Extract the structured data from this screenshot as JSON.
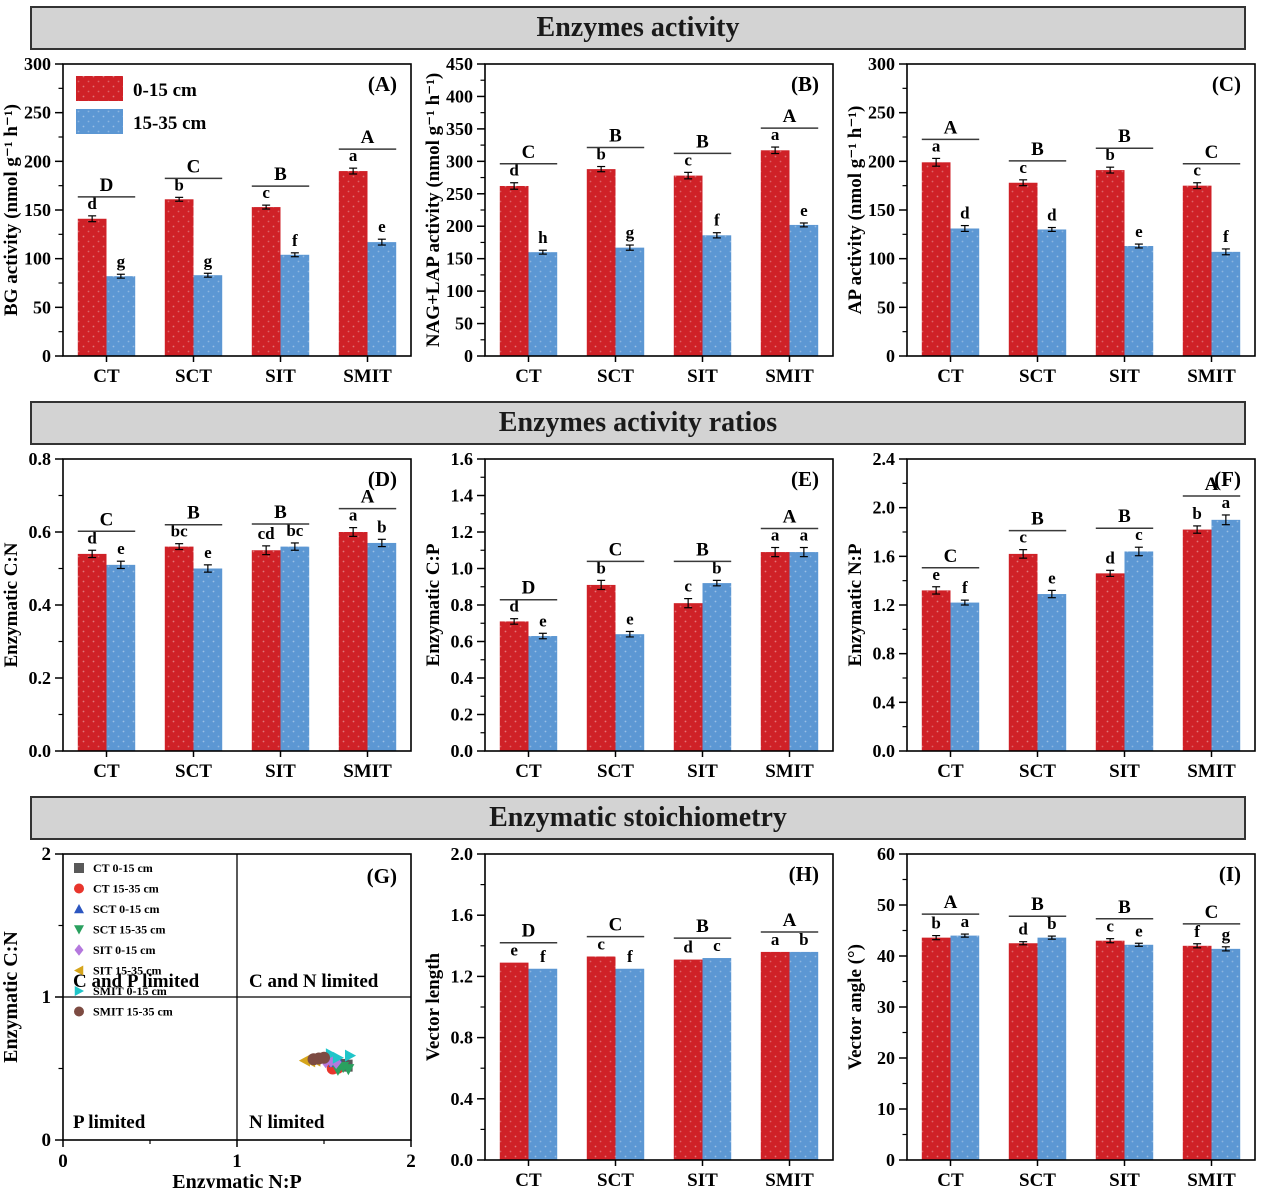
{
  "banners": [
    {
      "title": "Enzymes activity"
    },
    {
      "title": "Enzymes activity ratios"
    },
    {
      "title": "Enzymatic stoichiometry"
    }
  ],
  "colors": {
    "red": "#cf2127",
    "blue": "#5c97d3",
    "banner_bg": "#d3d3d3",
    "frame": "#000000",
    "group_line": "#3a3a3a"
  },
  "bar_legend": [
    {
      "label": "0-15 cm",
      "color_key": "red"
    },
    {
      "label": "15-35 cm",
      "color_key": "blue"
    }
  ],
  "chart_data": [
    {
      "id": "A",
      "tag": "(A)",
      "type": "bar",
      "ylabel": "BG activity (nmol g⁻¹ h⁻¹)",
      "ylim": [
        0,
        300
      ],
      "ystep": 50,
      "ydec": 0,
      "categories": [
        "CT",
        "SCT",
        "SIT",
        "SMIT"
      ],
      "series": [
        {
          "name": "0-15 cm",
          "color_key": "red",
          "values": [
            141,
            161,
            153,
            190
          ],
          "errors": [
            3,
            2,
            2,
            3
          ],
          "letters": [
            "d",
            "b",
            "c",
            "a"
          ]
        },
        {
          "name": "15-35 cm",
          "color_key": "blue",
          "values": [
            82,
            83,
            104,
            117
          ],
          "errors": [
            2,
            2,
            2,
            3
          ],
          "letters": [
            "g",
            "g",
            "f",
            "e"
          ]
        }
      ],
      "group_letters": [
        "D",
        "C",
        "B",
        "A"
      ],
      "show_legend": true
    },
    {
      "id": "B",
      "tag": "(B)",
      "type": "bar",
      "ylabel": "NAG+LAP activity (nmol g⁻¹ h⁻¹)",
      "ylim": [
        0,
        450
      ],
      "ystep": 50,
      "ydec": 0,
      "categories": [
        "CT",
        "SCT",
        "SIT",
        "SMIT"
      ],
      "series": [
        {
          "name": "0-15 cm",
          "color_key": "red",
          "values": [
            262,
            288,
            278,
            317
          ],
          "errors": [
            5,
            4,
            5,
            5
          ],
          "letters": [
            "d",
            "b",
            "c",
            "a"
          ]
        },
        {
          "name": "15-35 cm",
          "color_key": "blue",
          "values": [
            160,
            167,
            186,
            202
          ],
          "errors": [
            3,
            4,
            4,
            3
          ],
          "letters": [
            "h",
            "g",
            "f",
            "e"
          ]
        }
      ],
      "group_letters": [
        "C",
        "B",
        "B",
        "A"
      ],
      "show_legend": false
    },
    {
      "id": "C",
      "tag": "(C)",
      "type": "bar",
      "ylabel": "AP activity (nmol g⁻¹ h⁻¹)",
      "ylim": [
        0,
        300
      ],
      "ystep": 50,
      "ydec": 0,
      "categories": [
        "CT",
        "SCT",
        "SIT",
        "SMIT"
      ],
      "series": [
        {
          "name": "0-15 cm",
          "color_key": "red",
          "values": [
            199,
            178,
            191,
            175
          ],
          "errors": [
            4,
            3,
            3,
            3
          ],
          "letters": [
            "a",
            "c",
            "b",
            "c"
          ]
        },
        {
          "name": "15-35 cm",
          "color_key": "blue",
          "values": [
            131,
            130,
            113,
            107
          ],
          "errors": [
            3,
            2,
            2,
            3
          ],
          "letters": [
            "d",
            "d",
            "e",
            "f"
          ]
        }
      ],
      "group_letters": [
        "A",
        "B",
        "B",
        "C"
      ],
      "show_legend": false
    },
    {
      "id": "D",
      "tag": "(D)",
      "type": "bar",
      "ylabel": "Enzymatic C:N",
      "ylim": [
        0,
        0.8
      ],
      "ystep": 0.2,
      "ydec": 1,
      "categories": [
        "CT",
        "SCT",
        "SIT",
        "SMIT"
      ],
      "series": [
        {
          "name": "0-15 cm",
          "color_key": "red",
          "values": [
            0.54,
            0.56,
            0.55,
            0.6
          ],
          "errors": [
            0.01,
            0.008,
            0.012,
            0.012
          ],
          "letters": [
            "d",
            "bc",
            "cd",
            "a"
          ]
        },
        {
          "name": "15-35 cm",
          "color_key": "blue",
          "values": [
            0.51,
            0.5,
            0.56,
            0.57
          ],
          "errors": [
            0.01,
            0.01,
            0.01,
            0.01
          ],
          "letters": [
            "e",
            "e",
            "bc",
            "b"
          ]
        }
      ],
      "group_letters": [
        "C",
        "B",
        "B",
        "A"
      ],
      "show_legend": false
    },
    {
      "id": "E",
      "tag": "(E)",
      "type": "bar",
      "ylabel": "Enzymatic C:P",
      "ylim": [
        0,
        1.6
      ],
      "ystep": 0.2,
      "ydec": 1,
      "categories": [
        "CT",
        "SCT",
        "SIT",
        "SMIT"
      ],
      "series": [
        {
          "name": "0-15 cm",
          "color_key": "red",
          "values": [
            0.71,
            0.91,
            0.81,
            1.09
          ],
          "errors": [
            0.015,
            0.025,
            0.025,
            0.025
          ],
          "letters": [
            "d",
            "b",
            "c",
            "a"
          ]
        },
        {
          "name": "15-35 cm",
          "color_key": "blue",
          "values": [
            0.63,
            0.64,
            0.92,
            1.09
          ],
          "errors": [
            0.015,
            0.015,
            0.015,
            0.025
          ],
          "letters": [
            "e",
            "e",
            "b",
            "a"
          ]
        }
      ],
      "group_letters": [
        "D",
        "C",
        "B",
        "A"
      ],
      "show_legend": false
    },
    {
      "id": "F",
      "tag": "(F)",
      "type": "bar",
      "ylabel": "Enzymatic N:P",
      "ylim": [
        0,
        2.4
      ],
      "ystep": 0.4,
      "ydec": 1,
      "categories": [
        "CT",
        "SCT",
        "SIT",
        "SMIT"
      ],
      "series": [
        {
          "name": "0-15 cm",
          "color_key": "red",
          "values": [
            1.32,
            1.62,
            1.46,
            1.82
          ],
          "errors": [
            0.03,
            0.035,
            0.025,
            0.03
          ],
          "letters": [
            "e",
            "c",
            "d",
            "b"
          ]
        },
        {
          "name": "15-35 cm",
          "color_key": "blue",
          "values": [
            1.22,
            1.29,
            1.64,
            1.9
          ],
          "errors": [
            0.02,
            0.03,
            0.035,
            0.04
          ],
          "letters": [
            "f",
            "e",
            "c",
            "a"
          ]
        }
      ],
      "group_letters": [
        "C",
        "B",
        "B",
        "A"
      ],
      "show_legend": false
    },
    {
      "id": "G",
      "tag": "(G)",
      "type": "scatter",
      "xlabel": "Enzymatic N:P",
      "ylabel": "Enzymatic C:N",
      "xlim": [
        0,
        2
      ],
      "ylim": [
        0,
        2
      ],
      "xticks": [
        0,
        1,
        2
      ],
      "yticks": [
        0,
        1,
        2
      ],
      "quadrant_lines": {
        "x": 1,
        "y": 1
      },
      "quadrant_labels": [
        {
          "text": "C and P limited",
          "pos": "top-left"
        },
        {
          "text": "C and N limited",
          "pos": "top-right"
        },
        {
          "text": "P limited",
          "pos": "bottom-left"
        },
        {
          "text": "N limited",
          "pos": "bottom-right"
        }
      ],
      "series": [
        {
          "label": "CT 0-15 cm",
          "marker": "square",
          "color": "#595959",
          "points": [
            [
              1.6,
              0.525
            ],
            [
              1.63,
              0.52
            ]
          ]
        },
        {
          "label": "CT 15-35 cm",
          "marker": "circle",
          "color": "#e8352c",
          "points": [
            [
              1.55,
              0.5
            ],
            [
              1.58,
              0.505
            ]
          ]
        },
        {
          "label": "SCT 0-15 cm",
          "marker": "triangle-up",
          "color": "#2c56c0",
          "points": [
            [
              1.56,
              0.545
            ],
            [
              1.59,
              0.535
            ]
          ]
        },
        {
          "label": "SCT 15-35 cm",
          "marker": "triangle-down",
          "color": "#2aa05f",
          "points": [
            [
              1.58,
              0.49
            ],
            [
              1.61,
              0.51
            ],
            [
              1.64,
              0.495
            ]
          ]
        },
        {
          "label": "SIT 0-15 cm",
          "marker": "diamond",
          "color": "#b478dd",
          "points": [
            [
              1.51,
              0.55
            ],
            [
              1.54,
              0.555
            ],
            [
              1.57,
              0.545
            ]
          ]
        },
        {
          "label": "SIT 15-35 cm",
          "marker": "triangle-left",
          "color": "#d6a51b",
          "points": [
            [
              1.39,
              0.555
            ],
            [
              1.42,
              0.55
            ],
            [
              1.45,
              0.555
            ]
          ]
        },
        {
          "label": "SMIT 0-15 cm",
          "marker": "triangle-right",
          "color": "#1fc5c9",
          "points": [
            [
              1.54,
              0.6
            ],
            [
              1.58,
              0.575
            ],
            [
              1.65,
              0.59
            ]
          ]
        },
        {
          "label": "SMIT 15-35 cm",
          "marker": "circle",
          "color": "#7d4b42",
          "points": [
            [
              1.44,
              0.565
            ],
            [
              1.47,
              0.57
            ],
            [
              1.5,
              0.575
            ]
          ]
        }
      ]
    },
    {
      "id": "H",
      "tag": "(H)",
      "type": "bar",
      "ylabel": "Vector length",
      "ylim": [
        0,
        2.0
      ],
      "ystep": 0.4,
      "ydec": 1,
      "categories": [
        "CT",
        "SCT",
        "SIT",
        "SMIT"
      ],
      "series": [
        {
          "name": "0-15 cm",
          "color_key": "red",
          "values": [
            1.29,
            1.33,
            1.31,
            1.36
          ],
          "errors": [
            0,
            0,
            0,
            0
          ],
          "letters": [
            "e",
            "c",
            "d",
            "a"
          ]
        },
        {
          "name": "15-35 cm",
          "color_key": "blue",
          "values": [
            1.25,
            1.25,
            1.32,
            1.36
          ],
          "errors": [
            0,
            0,
            0,
            0
          ],
          "letters": [
            "f",
            "f",
            "c",
            "b"
          ]
        }
      ],
      "group_letters": [
        "D",
        "C",
        "B",
        "A"
      ],
      "show_legend": false
    },
    {
      "id": "I",
      "tag": "(I)",
      "type": "bar",
      "ylabel": "Vector angle (°)",
      "ylim": [
        0,
        60
      ],
      "ystep": 10,
      "ydec": 0,
      "categories": [
        "CT",
        "SCT",
        "SIT",
        "SMIT"
      ],
      "series": [
        {
          "name": "0-15 cm",
          "color_key": "red",
          "values": [
            43.6,
            42.5,
            43.0,
            42.0
          ],
          "errors": [
            0.4,
            0.3,
            0.4,
            0.4
          ],
          "letters": [
            "b",
            "d",
            "c",
            "f"
          ]
        },
        {
          "name": "15-35 cm",
          "color_key": "blue",
          "values": [
            44.0,
            43.6,
            42.2,
            41.4
          ],
          "errors": [
            0.3,
            0.3,
            0.3,
            0.4
          ],
          "letters": [
            "a",
            "b",
            "e",
            "g"
          ]
        }
      ],
      "group_letters": [
        "A",
        "B",
        "B",
        "C"
      ],
      "show_legend": false
    }
  ]
}
